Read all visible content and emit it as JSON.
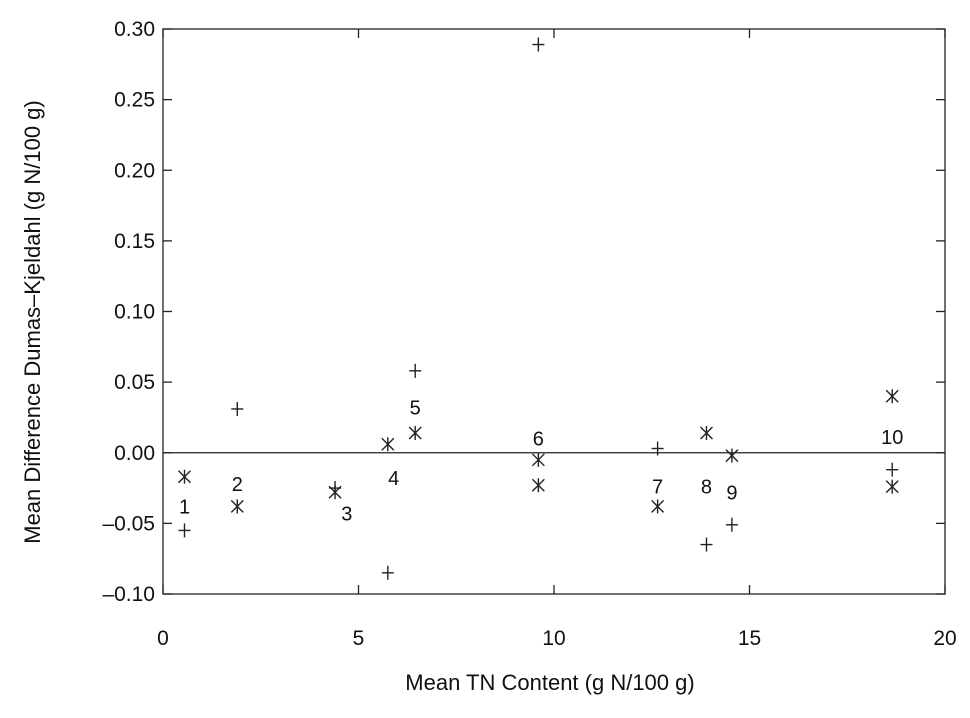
{
  "chart_data": {
    "type": "scatter",
    "title": "",
    "xlabel": "Mean TN Content (g N/100 g)",
    "ylabel": "Mean Difference Dumas–Kjeldahl (g N/100 g)",
    "xlim": [
      0,
      20
    ],
    "ylim": [
      -0.1,
      0.3
    ],
    "x_ticks": [
      0,
      5,
      10,
      15,
      20
    ],
    "x_tick_labels": [
      "0",
      "5",
      "10",
      "15",
      "20"
    ],
    "y_ticks": [
      -0.1,
      -0.05,
      0.0,
      0.05,
      0.1,
      0.15,
      0.2,
      0.25,
      0.3
    ],
    "y_tick_labels": [
      "–0.10",
      "–0.05",
      "0.00",
      "0.05",
      "0.10",
      "0.15",
      "0.20",
      "0.25",
      "0.30"
    ],
    "grid": false,
    "reference_line_y": 0,
    "series": [
      {
        "marker": "asterisk",
        "points": [
          {
            "x": 0.55,
            "y": -0.017
          },
          {
            "x": 1.9,
            "y": -0.038
          },
          {
            "x": 4.4,
            "y": -0.028
          },
          {
            "x": 5.75,
            "y": 0.006
          },
          {
            "x": 6.45,
            "y": 0.014
          },
          {
            "x": 9.6,
            "y": -0.005
          },
          {
            "x": 9.6,
            "y": -0.023
          },
          {
            "x": 12.65,
            "y": -0.038
          },
          {
            "x": 13.9,
            "y": 0.014
          },
          {
            "x": 14.55,
            "y": -0.002
          },
          {
            "x": 18.65,
            "y": 0.04
          },
          {
            "x": 18.65,
            "y": -0.024
          }
        ]
      },
      {
        "marker": "plus",
        "points": [
          {
            "x": 0.55,
            "y": -0.055
          },
          {
            "x": 1.9,
            "y": 0.031
          },
          {
            "x": 4.4,
            "y": -0.025
          },
          {
            "x": 5.75,
            "y": -0.085
          },
          {
            "x": 6.45,
            "y": 0.058
          },
          {
            "x": 9.6,
            "y": 0.289
          },
          {
            "x": 12.65,
            "y": 0.003
          },
          {
            "x": 13.9,
            "y": -0.065
          },
          {
            "x": 14.55,
            "y": -0.051
          },
          {
            "x": 18.65,
            "y": -0.012
          }
        ]
      }
    ],
    "annotations": [
      {
        "text": "1",
        "x": 0.55,
        "y": -0.038
      },
      {
        "text": "2",
        "x": 1.9,
        "y": -0.022
      },
      {
        "text": "3",
        "x": 4.7,
        "y": -0.043
      },
      {
        "text": "4",
        "x": 5.9,
        "y": -0.018
      },
      {
        "text": "5",
        "x": 6.45,
        "y": 0.032
      },
      {
        "text": "6",
        "x": 9.6,
        "y": 0.01
      },
      {
        "text": "7",
        "x": 12.65,
        "y": -0.024
      },
      {
        "text": "8",
        "x": 13.9,
        "y": -0.024
      },
      {
        "text": "9",
        "x": 14.55,
        "y": -0.028
      },
      {
        "text": "10",
        "x": 18.65,
        "y": 0.011
      }
    ]
  }
}
